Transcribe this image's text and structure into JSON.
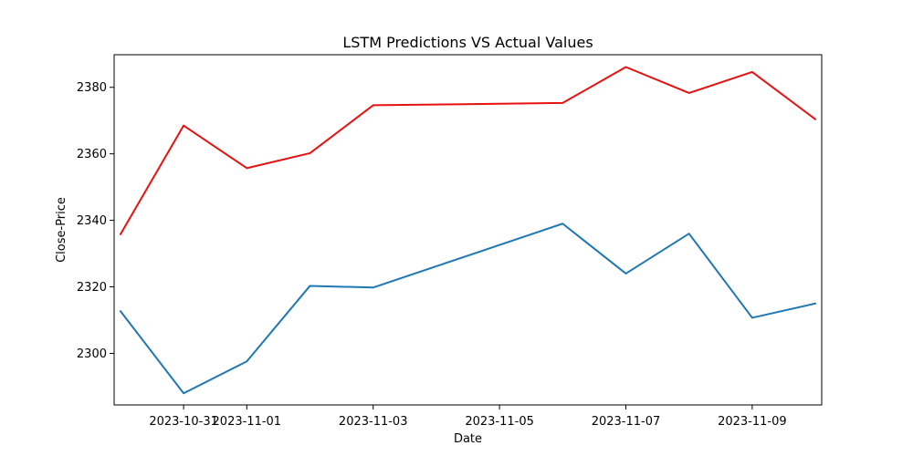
{
  "chart_data": {
    "type": "line",
    "title": "LSTM Predictions VS Actual Values",
    "xlabel": "Date",
    "ylabel": "Close-Price",
    "x": [
      "2023-10-30",
      "2023-10-31",
      "2023-11-01",
      "2023-11-02",
      "2023-11-03",
      "2023-11-06",
      "2023-11-07",
      "2023-11-08",
      "2023-11-09",
      "2023-11-10"
    ],
    "xlim": [
      "2023-10-29 21:36",
      "2023-11-10 02:24"
    ],
    "ylim": [
      2284.5,
      2389.8
    ],
    "x_ticks": [
      "2023-10-31",
      "2023-11-01",
      "2023-11-03",
      "2023-11-05",
      "2023-11-07",
      "2023-11-09"
    ],
    "x_tick_labels": [
      "2023-10-31",
      "2023-11-01",
      "2023-11-03",
      "2023-11-05",
      "2023-11-07",
      "2023-11-09"
    ],
    "y_ticks": [
      2300,
      2320,
      2340,
      2360,
      2380
    ],
    "y_tick_labels": [
      "2300",
      "2320",
      "2340",
      "2360",
      "2380"
    ],
    "grid": false,
    "series": [
      {
        "color": "#1f77b4",
        "values": [
          2312.7,
          2288.0,
          2297.6,
          2320.3,
          2319.8,
          2339.0,
          2324.0,
          2336.0,
          2310.7,
          2315.0
        ]
      },
      {
        "color": "#e8110f",
        "values": [
          2335.8,
          2368.5,
          2355.7,
          2360.2,
          2374.6,
          2375.3,
          2386.1,
          2378.3,
          2384.6,
          2370.4
        ]
      }
    ]
  }
}
